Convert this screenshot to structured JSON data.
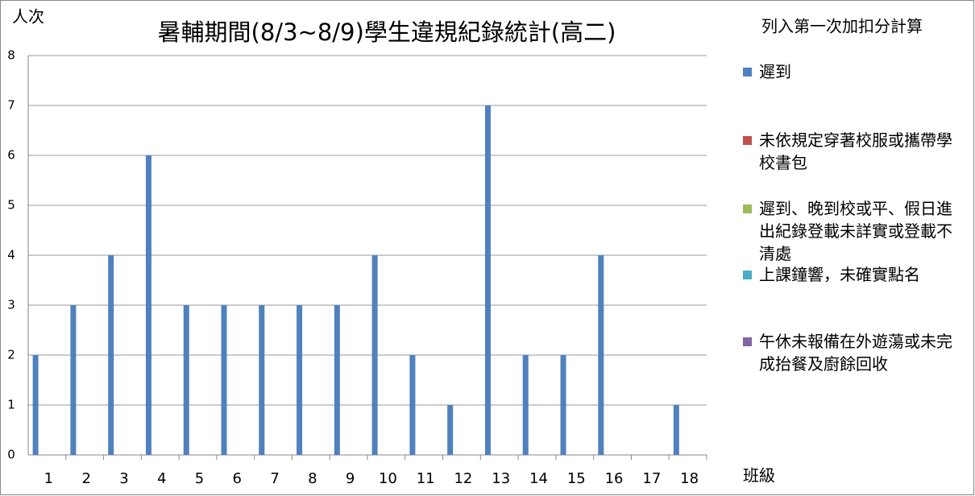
{
  "chart_data": {
    "type": "bar",
    "title": "暑輔期間(8/3~8/9)學生違規紀錄統計(高二)",
    "y_label": "人次",
    "x_label": "班級",
    "legend_title": "列入第一次加扣分計算",
    "categories": [
      "1",
      "2",
      "3",
      "4",
      "5",
      "6",
      "7",
      "8",
      "9",
      "10",
      "11",
      "12",
      "13",
      "14",
      "15",
      "16",
      "17",
      "18"
    ],
    "series": [
      {
        "name": "遲到",
        "color": "#4f81bd",
        "values": [
          2,
          3,
          4,
          6,
          3,
          3,
          3,
          3,
          3,
          4,
          2,
          1,
          7,
          2,
          2,
          4,
          0,
          1
        ]
      },
      {
        "name": "未依規定穿著校服或攜帶學校書包",
        "color": "#c0504d",
        "values": [
          0,
          0,
          0,
          0,
          0,
          0,
          0,
          0,
          0,
          0,
          0,
          0,
          0,
          0,
          0,
          0,
          0,
          0
        ]
      },
      {
        "name": "遲到、晚到校或平、假日進出紀錄登載未詳實或登載不清處",
        "color": "#9bbb59",
        "values": [
          0,
          0,
          0,
          0,
          0,
          0,
          0,
          0,
          0,
          0,
          0,
          0,
          0,
          0,
          0,
          0,
          0,
          0
        ]
      },
      {
        "name": "上課鐘響，未確實點名",
        "color": "#4bacc6",
        "values": [
          0,
          0,
          0,
          0,
          0,
          0,
          0,
          0,
          0,
          0,
          0,
          0,
          0,
          0,
          0,
          0,
          0,
          0
        ]
      },
      {
        "name": "午休未報備在外遊蕩或未完成抬餐及廚餘回收",
        "color": "#8064a2",
        "values": [
          0,
          0,
          0,
          0,
          0,
          0,
          0,
          0,
          0,
          0,
          0,
          0,
          0,
          0,
          0,
          0,
          0,
          0
        ]
      }
    ],
    "ylim": [
      0,
      8
    ],
    "yticks": [
      0,
      1,
      2,
      3,
      4,
      5,
      6,
      7,
      8
    ],
    "grid": true
  }
}
